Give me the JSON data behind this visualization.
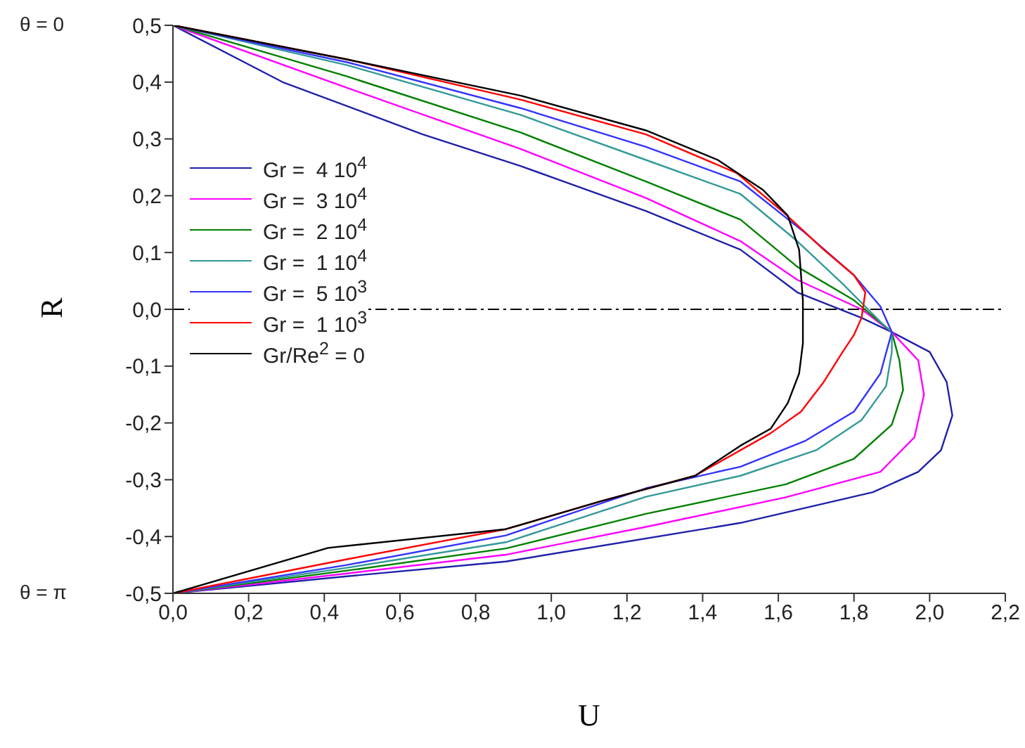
{
  "chart_data": {
    "type": "line",
    "xlabel": "U",
    "ylabel": "R",
    "xlim": [
      0,
      2.2
    ],
    "ylim": [
      -0.5,
      0.5
    ],
    "xticks": [
      {
        "value": 0,
        "label": "0,0"
      },
      {
        "value": 0.2,
        "label": "0,2"
      },
      {
        "value": 0.4,
        "label": "0,4"
      },
      {
        "value": 0.6,
        "label": "0,6"
      },
      {
        "value": 0.8,
        "label": "0,8"
      },
      {
        "value": 1.0,
        "label": "1,0"
      },
      {
        "value": 1.2,
        "label": "1,2"
      },
      {
        "value": 1.4,
        "label": "1,4"
      },
      {
        "value": 1.6,
        "label": "1,6"
      },
      {
        "value": 1.8,
        "label": "1,8"
      },
      {
        "value": 2.0,
        "label": "2,0"
      },
      {
        "value": 2.2,
        "label": "2,2"
      }
    ],
    "yticks": [
      {
        "value": -0.5,
        "label": "-0,5"
      },
      {
        "value": -0.4,
        "label": "-0,4"
      },
      {
        "value": -0.3,
        "label": "-0,3"
      },
      {
        "value": -0.2,
        "label": "-0,2"
      },
      {
        "value": -0.1,
        "label": "-0,1"
      },
      {
        "value": 0,
        "label": "0,0"
      },
      {
        "value": 0.1,
        "label": "0,1"
      },
      {
        "value": 0.2,
        "label": "0,2"
      },
      {
        "value": 0.3,
        "label": "0,3"
      },
      {
        "value": 0.4,
        "label": "0,4"
      },
      {
        "value": 0.5,
        "label": "0,5"
      }
    ],
    "legend": "left",
    "marker": "none",
    "line_style": "solid",
    "ref_lines": [
      {
        "axis": "y",
        "value": 0,
        "color": "#000000",
        "line_style": "dashed"
      }
    ],
    "annotations": [
      "θ = 0",
      "θ = π"
    ],
    "series": [
      {
        "name": "Gr =  4 10$^{4}$",
        "color": "#2020a8",
        "x": [
          0,
          0.29,
          0.66,
          0.92,
          1.25,
          1.5,
          1.65,
          1.82,
          1.9,
          2.0,
          2.045,
          2.06,
          2.03,
          1.97,
          1.85,
          1.5,
          0.88,
          0.46,
          0
        ],
        "values": [
          0.5,
          0.4,
          0.308,
          0.252,
          0.173,
          0.105,
          0.03,
          -0.015,
          -0.04,
          -0.075,
          -0.128,
          -0.187,
          -0.248,
          -0.286,
          -0.322,
          -0.376,
          -0.444,
          -0.47,
          -0.5
        ]
      },
      {
        "name": "Gr =  3 10$^{4}$",
        "color": "#ff00ff",
        "x": [
          0,
          0.46,
          0.92,
          1.25,
          1.5,
          1.65,
          1.82,
          1.9,
          1.97,
          1.985,
          1.96,
          1.87,
          1.62,
          1.25,
          0.88,
          0.46,
          0
        ],
        "values": [
          0.5,
          0.39,
          0.282,
          0.196,
          0.12,
          0.052,
          0,
          -0.04,
          -0.09,
          -0.15,
          -0.225,
          -0.286,
          -0.331,
          -0.383,
          -0.432,
          -0.465,
          -0.5
        ]
      },
      {
        "name": "Gr =  2 10$^{4}$",
        "color": "#008000",
        "x": [
          0,
          0.46,
          0.92,
          1.25,
          1.5,
          1.65,
          1.8,
          1.9,
          1.92,
          1.93,
          1.9,
          1.8,
          1.62,
          1.25,
          0.88,
          0.46,
          0
        ],
        "values": [
          0.5,
          0.41,
          0.311,
          0.225,
          0.158,
          0.075,
          0.016,
          -0.04,
          -0.09,
          -0.142,
          -0.203,
          -0.263,
          -0.308,
          -0.36,
          -0.421,
          -0.46,
          -0.5
        ]
      },
      {
        "name": "Gr =  1 10$^{4}$",
        "color": "#339999",
        "x": [
          0,
          0.46,
          0.92,
          1.25,
          1.5,
          1.65,
          1.77,
          1.87,
          1.9,
          1.9,
          1.885,
          1.82,
          1.7,
          1.5,
          1.25,
          0.88,
          0.46,
          0
        ],
        "values": [
          0.5,
          0.43,
          0.342,
          0.263,
          0.203,
          0.12,
          0.045,
          -0.022,
          -0.04,
          -0.075,
          -0.135,
          -0.195,
          -0.248,
          -0.293,
          -0.33,
          -0.41,
          -0.455,
          -0.5
        ]
      },
      {
        "name": "Gr =  5 10$^{3}$",
        "color": "#3333ff",
        "x": [
          0,
          0.46,
          0.92,
          1.25,
          1.5,
          1.67,
          1.8,
          1.87,
          1.9,
          1.87,
          1.8,
          1.67,
          1.5,
          1.25,
          0.88,
          0.46,
          0
        ],
        "values": [
          0.5,
          0.435,
          0.354,
          0.286,
          0.225,
          0.135,
          0.06,
          0.005,
          -0.04,
          -0.113,
          -0.18,
          -0.232,
          -0.277,
          -0.315,
          -0.398,
          -0.45,
          -0.5
        ]
      },
      {
        "name": "Gr =  1 10$^{3}$",
        "color": "#ff0000",
        "x": [
          0,
          0.46,
          0.92,
          1.25,
          1.49,
          1.61,
          1.72,
          1.8,
          1.83,
          1.82,
          1.8,
          1.77,
          1.72,
          1.66,
          1.58,
          1.38,
          1.13,
          0.88,
          0.46,
          0
        ],
        "values": [
          0.5,
          0.44,
          0.369,
          0.308,
          0.24,
          0.173,
          0.105,
          0.06,
          0.03,
          -0.015,
          -0.045,
          -0.075,
          -0.128,
          -0.18,
          -0.218,
          -0.293,
          -0.338,
          -0.387,
          -0.44,
          -0.5
        ]
      },
      {
        "name": "Gr/Re$^{2}$ = 0",
        "color": "#000000",
        "x": [
          0,
          0.46,
          0.92,
          1.25,
          1.44,
          1.56,
          1.625,
          1.655,
          1.665,
          1.665,
          1.655,
          1.625,
          1.58,
          1.5,
          1.38,
          1.13,
          0.88,
          0.41,
          0
        ],
        "values": [
          0.5,
          0.44,
          0.376,
          0.315,
          0.263,
          0.21,
          0.165,
          0.105,
          0.016,
          -0.06,
          -0.113,
          -0.165,
          -0.21,
          -0.24,
          -0.293,
          -0.338,
          -0.387,
          -0.42,
          -0.5
        ]
      }
    ]
  }
}
